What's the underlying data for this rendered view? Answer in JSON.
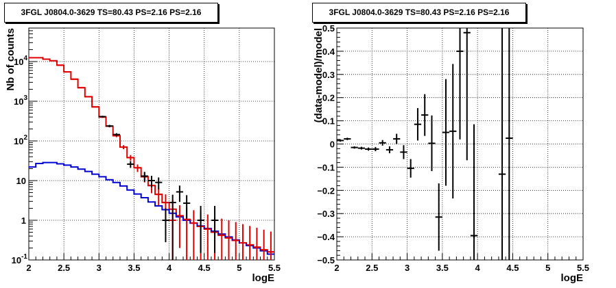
{
  "panels": [
    {
      "title": "3FGL J0804.0-3629 TS=80.43 PS=2.16 PS=2.16"
    },
    {
      "title": "3FGL J0804.0-3629 TS=80.43 PS=2.16 PS=2.16"
    }
  ],
  "colors": {
    "data": "#000000",
    "model_total": "#e00000",
    "model_background": "#0000d0"
  },
  "chart_data": [
    {
      "type": "line",
      "xlabel": "logE",
      "ylabel": "Nb of counts",
      "xlim": [
        2,
        5.5
      ],
      "ylim": [
        0.1,
        70000
      ],
      "yscale": "log",
      "grid": true,
      "xticks": [
        "2",
        "2.5",
        "3",
        "3.5",
        "4",
        "4.5",
        "5",
        "5.5"
      ],
      "yticks": [
        {
          "value": 0.1,
          "label": "10",
          "exp": "-1"
        },
        {
          "value": 1,
          "label": "1",
          "exp": ""
        },
        {
          "value": 10,
          "label": "10",
          "exp": ""
        },
        {
          "value": 100,
          "label": "10",
          "exp": "2"
        },
        {
          "value": 1000,
          "label": "10",
          "exp": "3"
        },
        {
          "value": 10000,
          "label": "10",
          "exp": "4"
        }
      ],
      "bin_edges": [
        2.0,
        2.1,
        2.2,
        2.3,
        2.4,
        2.5,
        2.6,
        2.7,
        2.8,
        2.9,
        3.0,
        3.1,
        3.2,
        3.3,
        3.4,
        3.5,
        3.6,
        3.7,
        3.8,
        3.9,
        4.0,
        4.1,
        4.2,
        4.3,
        4.4,
        4.5,
        4.6,
        4.7,
        4.8,
        4.9,
        5.0,
        5.1,
        5.2,
        5.3,
        5.4,
        5.5
      ],
      "series": [
        {
          "kind": "step",
          "color": "#e00000",
          "values": [
            12500,
            12500,
            11500,
            10500,
            8100,
            5500,
            3600,
            2200,
            1300,
            720,
            400,
            235,
            135,
            70,
            38,
            21,
            12.5,
            7.5,
            4.5,
            2.8,
            1.9,
            1.3,
            1.05,
            0.85,
            0.7,
            0.6,
            0.5,
            0.42,
            0.36,
            0.31,
            0.27,
            0.24,
            0.21,
            0.18,
            0.16
          ]
        },
        {
          "kind": "step",
          "color": "#0000d0",
          "values": [
            22,
            27,
            28.5,
            28.5,
            26.5,
            24.5,
            22,
            19.5,
            17,
            14.5,
            12.5,
            10.5,
            9,
            7.3,
            5.8,
            4.6,
            3.7,
            2.9,
            2.3,
            1.85,
            1.5,
            1.22,
            1.0,
            0.85,
            0.72,
            0.62,
            0.53,
            0.45,
            0.38,
            0.32,
            0.27,
            0.23,
            0.2,
            0.17,
            0.14
          ]
        },
        {
          "kind": "errorbar",
          "color": "#e00000",
          "points": [
            {
              "x": 2.45,
              "y": 8100,
              "lo": 8000,
              "hi": 8200
            },
            {
              "x": 2.55,
              "y": 5500,
              "lo": 5420,
              "hi": 5580
            },
            {
              "x": 2.65,
              "y": 3600,
              "lo": 3540,
              "hi": 3660
            },
            {
              "x": 2.75,
              "y": 2200,
              "lo": 2150,
              "hi": 2250
            },
            {
              "x": 2.85,
              "y": 1300,
              "lo": 1265,
              "hi": 1335
            },
            {
              "x": 2.95,
              "y": 720,
              "lo": 695,
              "hi": 745
            },
            {
              "x": 3.05,
              "y": 400,
              "lo": 380,
              "hi": 420
            },
            {
              "x": 3.15,
              "y": 235,
              "lo": 220,
              "hi": 250
            },
            {
              "x": 3.25,
              "y": 135,
              "lo": 124,
              "hi": 146
            },
            {
              "x": 3.35,
              "y": 70,
              "lo": 62,
              "hi": 78
            },
            {
              "x": 3.45,
              "y": 38,
              "lo": 32,
              "hi": 44
            },
            {
              "x": 3.55,
              "y": 21,
              "lo": 16.5,
              "hi": 25.5
            },
            {
              "x": 3.65,
              "y": 12.5,
              "lo": 9,
              "hi": 16
            },
            {
              "x": 3.75,
              "y": 7.5,
              "lo": 4.8,
              "hi": 10.2
            },
            {
              "x": 3.85,
              "y": 4.5,
              "lo": 2.4,
              "hi": 6.6
            },
            {
              "x": 3.95,
              "y": 2.8,
              "lo": 1.1,
              "hi": 4.5
            },
            {
              "x": 4.05,
              "y": 1.0,
              "lo": 0.1,
              "hi": 3.3
            },
            {
              "x": 4.15,
              "y": 1.3,
              "lo": 0.2,
              "hi": 2.4
            },
            {
              "x": 4.25,
              "y": 1.05,
              "lo": 0.1,
              "hi": 2.1
            },
            {
              "x": 4.35,
              "y": 0.85,
              "lo": 0.1,
              "hi": 1.8
            },
            {
              "x": 4.45,
              "y": 0.7,
              "lo": 0.1,
              "hi": 1.6
            },
            {
              "x": 4.55,
              "y": 0.6,
              "lo": 0.1,
              "hi": 1.4
            },
            {
              "x": 4.65,
              "y": 0.5,
              "lo": 0.1,
              "hi": 1.2
            },
            {
              "x": 4.75,
              "y": 0.42,
              "lo": 0.1,
              "hi": 1.1
            },
            {
              "x": 4.85,
              "y": 0.36,
              "lo": 0.1,
              "hi": 1.0
            },
            {
              "x": 4.95,
              "y": 0.31,
              "lo": 0.1,
              "hi": 0.9
            },
            {
              "x": 5.05,
              "y": 0.27,
              "lo": 0.1,
              "hi": 0.8
            },
            {
              "x": 5.15,
              "y": 0.24,
              "lo": 0.1,
              "hi": 0.72
            },
            {
              "x": 5.25,
              "y": 0.21,
              "lo": 0.1,
              "hi": 0.65
            },
            {
              "x": 5.35,
              "y": 0.18,
              "lo": 0.1,
              "hi": 0.58
            },
            {
              "x": 5.45,
              "y": 0.16,
              "lo": 0.1,
              "hi": 0.52
            }
          ]
        },
        {
          "kind": "errorbar",
          "color": "#000000",
          "points": [
            {
              "x": 3.05,
              "y": 410,
              "lo": 390,
              "hi": 430
            },
            {
              "x": 3.15,
              "y": 238,
              "lo": 222,
              "hi": 254
            },
            {
              "x": 3.25,
              "y": 145,
              "lo": 133,
              "hi": 157
            },
            {
              "x": 3.45,
              "y": 26,
              "lo": 21,
              "hi": 31
            },
            {
              "x": 3.65,
              "y": 13,
              "lo": 9.4,
              "hi": 16.6
            },
            {
              "x": 3.75,
              "y": 10,
              "lo": 6.8,
              "hi": 13.2
            },
            {
              "x": 3.85,
              "y": 9,
              "lo": 6,
              "hi": 12
            },
            {
              "x": 3.95,
              "y": 1.0,
              "lo": 0.28,
              "hi": 2.0
            },
            {
              "x": 4.05,
              "y": 2.8,
              "lo": 0.1,
              "hi": 4.4
            },
            {
              "x": 4.15,
              "y": 5.2,
              "lo": 2.9,
              "hi": 7.5
            },
            {
              "x": 4.25,
              "y": 2.7,
              "lo": 1.1,
              "hi": 4.3
            },
            {
              "x": 4.45,
              "y": 1.0,
              "lo": 0.15,
              "hi": 2.3
            },
            {
              "x": 4.65,
              "y": 1.0,
              "lo": 0.15,
              "hi": 2.3
            }
          ]
        }
      ]
    },
    {
      "type": "scatter",
      "xlabel": "logE",
      "ylabel": "(data-model)/model",
      "xlim": [
        2,
        5.5
      ],
      "ylim": [
        -0.5,
        0.5
      ],
      "grid": true,
      "xticks": [
        "2",
        "2.5",
        "3",
        "3.5",
        "4",
        "4.5",
        "5",
        "5.5"
      ],
      "yticks": [
        "−0.5",
        "−0.4",
        "−0.3",
        "−0.2",
        "−0.1",
        "0",
        "0.1",
        "0.2",
        "0.3",
        "0.4",
        "0.5"
      ],
      "series": [
        {
          "kind": "errorbar",
          "color": "#000000",
          "points": [
            {
              "x": 2.05,
              "y": 0.015,
              "err": 0.005
            },
            {
              "x": 2.15,
              "y": 0.022,
              "err": 0.005
            },
            {
              "x": 2.25,
              "y": -0.015,
              "err": 0.005
            },
            {
              "x": 2.35,
              "y": -0.018,
              "err": 0.006
            },
            {
              "x": 2.45,
              "y": -0.022,
              "err": 0.007
            },
            {
              "x": 2.55,
              "y": -0.022,
              "err": 0.009
            },
            {
              "x": 2.65,
              "y": 0.005,
              "err": 0.012
            },
            {
              "x": 2.75,
              "y": -0.025,
              "err": 0.015
            },
            {
              "x": 2.85,
              "y": 0.022,
              "err": 0.022
            },
            {
              "x": 2.95,
              "y": -0.035,
              "err": 0.03
            },
            {
              "x": 3.05,
              "y": -0.105,
              "err": 0.04
            },
            {
              "x": 3.15,
              "y": 0.085,
              "err": 0.07
            },
            {
              "x": 3.25,
              "y": 0.125,
              "err": 0.09
            },
            {
              "x": 3.35,
              "y": 0.003,
              "err": 0.12
            },
            {
              "x": 3.45,
              "y": -0.315,
              "err": 0.145
            },
            {
              "x": 3.55,
              "y": 0.05,
              "err": 0.23
            },
            {
              "x": 3.65,
              "y": 0.055,
              "err": 0.29
            },
            {
              "x": 3.75,
              "y": 0.4,
              "err": 0.38
            },
            {
              "x": 3.85,
              "y": 0.48,
              "err": 0.55
            },
            {
              "x": 3.95,
              "y": -0.395,
              "err": 0.48
            },
            {
              "x": 4.35,
              "y": -0.13,
              "err": 1.0
            },
            {
              "x": 4.45,
              "y": 0.025,
              "err": 1.0
            }
          ]
        }
      ]
    }
  ]
}
